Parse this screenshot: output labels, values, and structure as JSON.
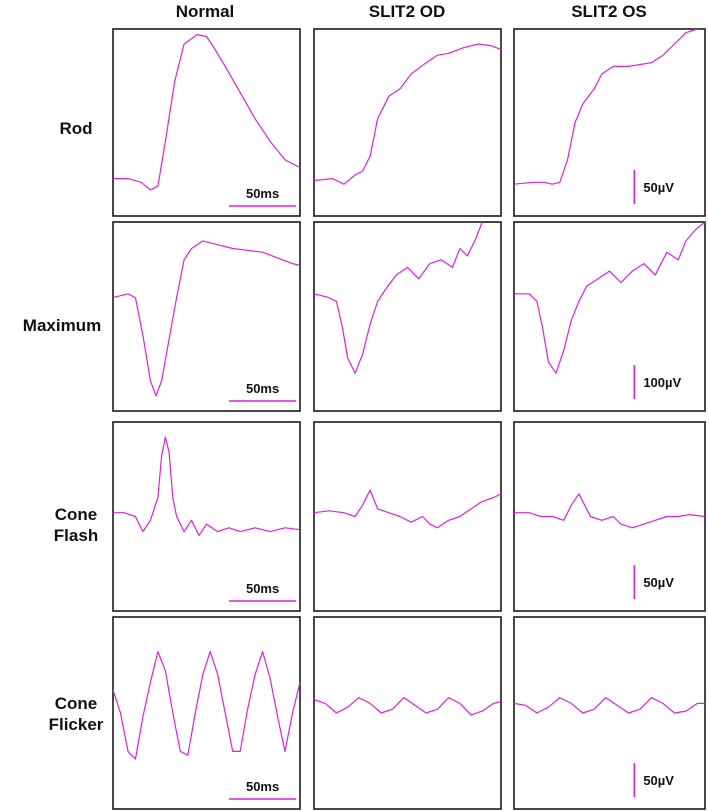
{
  "title": "",
  "columns": [
    "Normal",
    "SLIT2 OD",
    "SLIT2 OS"
  ],
  "rows": [
    {
      "label_lines": [
        "Rod"
      ],
      "time_scale": "50ms",
      "amplitude_scale": "50µV"
    },
    {
      "label_lines": [
        "Maximum"
      ],
      "time_scale": "50ms",
      "amplitude_scale": "100µV"
    },
    {
      "label_lines": [
        "Cone",
        "Flash"
      ],
      "time_scale": "50ms",
      "amplitude_scale": "50µV"
    },
    {
      "label_lines": [
        "Cone",
        "Flicker"
      ],
      "time_scale": "50ms",
      "amplitude_scale": "50µV"
    }
  ],
  "colors": {
    "trace": "#e020e0",
    "frame": "#1a1a1a",
    "text": "#111111"
  },
  "chart_data": {
    "type": "line",
    "description_units": "x = time (fraction of panel width), y = response (fraction of panel height, 1 = top)",
    "panels": [
      {
        "row": "Rod",
        "column": "Normal",
        "series": {
          "name": "Normal",
          "x": [
            0,
            0.08,
            0.15,
            0.2,
            0.24,
            0.28,
            0.33,
            0.38,
            0.45,
            0.5,
            0.54,
            0.6,
            0.68,
            0.76,
            0.84,
            0.92,
            1.0
          ],
          "y": [
            0.2,
            0.2,
            0.18,
            0.14,
            0.16,
            0.4,
            0.72,
            0.92,
            0.97,
            0.96,
            0.9,
            0.8,
            0.66,
            0.52,
            0.4,
            0.3,
            0.26
          ]
        }
      },
      {
        "row": "Rod",
        "column": "SLIT2 OD",
        "series": {
          "name": "SLIT2 OD",
          "x": [
            0,
            0.1,
            0.16,
            0.22,
            0.26,
            0.3,
            0.34,
            0.4,
            0.46,
            0.52,
            0.6,
            0.66,
            0.72,
            0.8,
            0.88,
            0.95,
            1.0
          ],
          "y": [
            0.19,
            0.2,
            0.17,
            0.22,
            0.24,
            0.32,
            0.52,
            0.64,
            0.68,
            0.76,
            0.82,
            0.86,
            0.87,
            0.9,
            0.92,
            0.91,
            0.89
          ]
        }
      },
      {
        "row": "Rod",
        "column": "SLIT2 OS",
        "series": {
          "name": "SLIT2 OS",
          "x": [
            0,
            0.1,
            0.16,
            0.2,
            0.24,
            0.28,
            0.32,
            0.36,
            0.42,
            0.46,
            0.52,
            0.6,
            0.66,
            0.72,
            0.78,
            0.84,
            0.9,
            0.96
          ],
          "y": [
            0.17,
            0.18,
            0.18,
            0.17,
            0.18,
            0.3,
            0.5,
            0.6,
            0.68,
            0.76,
            0.8,
            0.8,
            0.81,
            0.82,
            0.86,
            0.92,
            0.98,
            1.0
          ]
        }
      },
      {
        "row": "Maximum",
        "column": "Normal",
        "series": {
          "name": "Normal",
          "x": [
            0,
            0.08,
            0.12,
            0.16,
            0.2,
            0.23,
            0.26,
            0.3,
            0.34,
            0.38,
            0.42,
            0.48,
            0.56,
            0.64,
            0.72,
            0.8,
            0.88,
            0.96,
            1.0
          ],
          "y": [
            0.6,
            0.62,
            0.6,
            0.4,
            0.16,
            0.08,
            0.16,
            0.38,
            0.6,
            0.8,
            0.86,
            0.9,
            0.88,
            0.86,
            0.85,
            0.84,
            0.81,
            0.78,
            0.77
          ]
        }
      },
      {
        "row": "Maximum",
        "column": "SLIT2 OD",
        "series": {
          "name": "SLIT2 OD",
          "x": [
            0,
            0.08,
            0.12,
            0.15,
            0.18,
            0.22,
            0.26,
            0.3,
            0.34,
            0.38,
            0.44,
            0.5,
            0.56,
            0.62,
            0.68,
            0.74,
            0.78,
            0.82,
            0.86,
            0.9
          ],
          "y": [
            0.62,
            0.6,
            0.58,
            0.45,
            0.28,
            0.2,
            0.3,
            0.46,
            0.58,
            0.64,
            0.72,
            0.76,
            0.7,
            0.78,
            0.8,
            0.76,
            0.86,
            0.82,
            0.9,
            1.0
          ]
        }
      },
      {
        "row": "Maximum",
        "column": "SLIT2 OS",
        "series": {
          "name": "SLIT2 OS",
          "x": [
            0,
            0.08,
            0.12,
            0.15,
            0.18,
            0.22,
            0.26,
            0.3,
            0.34,
            0.38,
            0.44,
            0.5,
            0.56,
            0.62,
            0.68,
            0.74,
            0.8,
            0.86,
            0.9,
            0.95,
            1.0
          ],
          "y": [
            0.62,
            0.62,
            0.58,
            0.44,
            0.26,
            0.2,
            0.32,
            0.48,
            0.58,
            0.66,
            0.7,
            0.74,
            0.68,
            0.74,
            0.78,
            0.72,
            0.84,
            0.8,
            0.9,
            0.96,
            1.0
          ]
        }
      },
      {
        "row": "Cone Flash",
        "column": "Normal",
        "series": {
          "name": "Normal",
          "x": [
            0,
            0.06,
            0.12,
            0.16,
            0.2,
            0.24,
            0.26,
            0.28,
            0.3,
            0.32,
            0.34,
            0.38,
            0.42,
            0.46,
            0.5,
            0.56,
            0.62,
            0.68,
            0.76,
            0.84,
            0.92,
            1.0
          ],
          "y": [
            0.52,
            0.52,
            0.5,
            0.42,
            0.48,
            0.6,
            0.82,
            0.92,
            0.84,
            0.6,
            0.5,
            0.42,
            0.48,
            0.4,
            0.46,
            0.42,
            0.44,
            0.42,
            0.44,
            0.42,
            0.44,
            0.43
          ]
        }
      },
      {
        "row": "Cone Flash",
        "column": "SLIT2 OD",
        "series": {
          "name": "SLIT2 OD",
          "x": [
            0,
            0.08,
            0.16,
            0.22,
            0.26,
            0.3,
            0.34,
            0.4,
            0.46,
            0.52,
            0.58,
            0.62,
            0.66,
            0.72,
            0.78,
            0.84,
            0.9,
            0.96,
            1.0
          ],
          "y": [
            0.52,
            0.53,
            0.52,
            0.5,
            0.56,
            0.64,
            0.54,
            0.52,
            0.5,
            0.47,
            0.5,
            0.46,
            0.44,
            0.48,
            0.5,
            0.54,
            0.58,
            0.6,
            0.62
          ]
        }
      },
      {
        "row": "Cone Flash",
        "column": "SLIT2 OS",
        "series": {
          "name": "SLIT2 OS",
          "x": [
            0,
            0.08,
            0.14,
            0.2,
            0.26,
            0.3,
            0.34,
            0.4,
            0.46,
            0.52,
            0.56,
            0.62,
            0.68,
            0.74,
            0.8,
            0.86,
            0.92,
            1.0
          ],
          "y": [
            0.52,
            0.52,
            0.5,
            0.5,
            0.48,
            0.56,
            0.62,
            0.5,
            0.48,
            0.5,
            0.46,
            0.44,
            0.46,
            0.48,
            0.5,
            0.5,
            0.51,
            0.5
          ]
        }
      },
      {
        "row": "Cone Flicker",
        "column": "Normal",
        "series": {
          "name": "Normal",
          "x": [
            0,
            0.04,
            0.08,
            0.12,
            0.16,
            0.2,
            0.24,
            0.28,
            0.32,
            0.36,
            0.4,
            0.44,
            0.48,
            0.52,
            0.56,
            0.6,
            0.64,
            0.68,
            0.72,
            0.76,
            0.8,
            0.84,
            0.88,
            0.92,
            0.96,
            1.0
          ],
          "y": [
            0.62,
            0.5,
            0.3,
            0.26,
            0.48,
            0.66,
            0.82,
            0.72,
            0.5,
            0.3,
            0.28,
            0.5,
            0.7,
            0.82,
            0.7,
            0.5,
            0.3,
            0.3,
            0.52,
            0.7,
            0.82,
            0.68,
            0.48,
            0.3,
            0.5,
            0.66
          ]
        }
      },
      {
        "row": "Cone Flicker",
        "column": "SLIT2 OD",
        "series": {
          "name": "SLIT2 OD",
          "x": [
            0,
            0.06,
            0.12,
            0.18,
            0.24,
            0.3,
            0.36,
            0.42,
            0.48,
            0.54,
            0.6,
            0.66,
            0.72,
            0.78,
            0.84,
            0.9,
            0.96,
            1.0
          ],
          "y": [
            0.57,
            0.55,
            0.5,
            0.53,
            0.58,
            0.55,
            0.5,
            0.52,
            0.58,
            0.54,
            0.5,
            0.52,
            0.58,
            0.55,
            0.49,
            0.51,
            0.55,
            0.56
          ]
        }
      },
      {
        "row": "Cone Flicker",
        "column": "SLIT2 OS",
        "series": {
          "name": "SLIT2 OS",
          "x": [
            0,
            0.06,
            0.12,
            0.18,
            0.24,
            0.3,
            0.36,
            0.42,
            0.48,
            0.54,
            0.6,
            0.66,
            0.72,
            0.78,
            0.84,
            0.9,
            0.96,
            1.0
          ],
          "y": [
            0.55,
            0.54,
            0.5,
            0.53,
            0.58,
            0.55,
            0.5,
            0.52,
            0.58,
            0.54,
            0.5,
            0.52,
            0.58,
            0.55,
            0.5,
            0.51,
            0.55,
            0.55
          ]
        }
      }
    ],
    "scale_bars": [
      {
        "row": "Rod",
        "column": "Normal",
        "label": "50ms",
        "orientation": "horizontal"
      },
      {
        "row": "Rod",
        "column": "SLIT2 OS",
        "label": "50µV",
        "orientation": "vertical"
      },
      {
        "row": "Maximum",
        "column": "Normal",
        "label": "50ms",
        "orientation": "horizontal"
      },
      {
        "row": "Maximum",
        "column": "SLIT2 OS",
        "label": "100µV",
        "orientation": "vertical"
      },
      {
        "row": "Cone Flash",
        "column": "Normal",
        "label": "50ms",
        "orientation": "horizontal"
      },
      {
        "row": "Cone Flash",
        "column": "SLIT2 OS",
        "label": "50µV",
        "orientation": "vertical"
      },
      {
        "row": "Cone Flicker",
        "column": "Normal",
        "label": "50ms",
        "orientation": "horizontal"
      },
      {
        "row": "Cone Flicker",
        "column": "SLIT2 OS",
        "label": "50µV",
        "orientation": "vertical"
      }
    ]
  }
}
